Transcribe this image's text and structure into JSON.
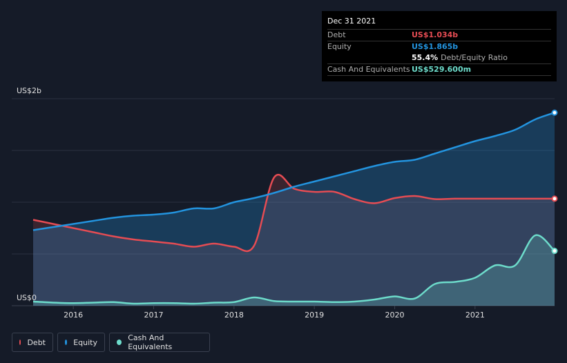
{
  "tooltip": {
    "date": "Dec 31 2021",
    "debt_label": "Debt",
    "debt_value": "US$1.034b",
    "equity_label": "Equity",
    "equity_value": "US$1.865b",
    "ratio_value": "55.4%",
    "ratio_label": "Debt/Equity Ratio",
    "cash_label": "Cash And Equivalents",
    "cash_value": "US$529.600m"
  },
  "legend": {
    "debt": "Debt",
    "equity": "Equity",
    "cash": "Cash And Equivalents"
  },
  "colors": {
    "background": "#151b28",
    "debt": "#e64c53",
    "equity": "#2394df",
    "cash": "#6ddccb"
  },
  "chart_data": {
    "type": "area",
    "y_axis_labels": [
      "US$2b",
      "US$0"
    ],
    "ylim": [
      0,
      2.0
    ],
    "xlim": [
      2015.5,
      2021.99
    ],
    "x_ticks": [
      2016,
      2017,
      2018,
      2019,
      2020,
      2021
    ],
    "x_tick_labels": [
      "2016",
      "2017",
      "2018",
      "2019",
      "2020",
      "2021"
    ],
    "unit": "US$b",
    "series": [
      {
        "name": "Debt",
        "x": [
          2015.5,
          2015.75,
          2016.0,
          2016.25,
          2016.5,
          2016.75,
          2017.0,
          2017.25,
          2017.5,
          2017.75,
          2018.0,
          2018.25,
          2018.5,
          2018.75,
          2019.0,
          2019.25,
          2019.5,
          2019.75,
          2020.0,
          2020.25,
          2020.5,
          2020.75,
          2021.0,
          2021.25,
          2021.5,
          2021.75,
          2021.99
        ],
        "values": [
          0.83,
          0.79,
          0.75,
          0.71,
          0.67,
          0.64,
          0.62,
          0.6,
          0.57,
          0.6,
          0.57,
          0.58,
          1.24,
          1.13,
          1.1,
          1.1,
          1.03,
          0.99,
          1.04,
          1.06,
          1.03,
          1.034,
          1.034,
          1.034,
          1.034,
          1.034,
          1.034
        ]
      },
      {
        "name": "Equity",
        "x": [
          2015.5,
          2015.75,
          2016.0,
          2016.25,
          2016.5,
          2016.75,
          2017.0,
          2017.25,
          2017.5,
          2017.75,
          2018.0,
          2018.25,
          2018.5,
          2018.75,
          2019.0,
          2019.25,
          2019.5,
          2019.75,
          2020.0,
          2020.25,
          2020.5,
          2020.75,
          2021.0,
          2021.25,
          2021.5,
          2021.75,
          2021.99
        ],
        "values": [
          0.73,
          0.76,
          0.79,
          0.82,
          0.85,
          0.87,
          0.88,
          0.9,
          0.94,
          0.94,
          1.0,
          1.04,
          1.09,
          1.15,
          1.2,
          1.25,
          1.3,
          1.35,
          1.39,
          1.41,
          1.47,
          1.53,
          1.59,
          1.64,
          1.7,
          1.8,
          1.865
        ]
      },
      {
        "name": "Cash And Equivalents",
        "x": [
          2015.5,
          2015.75,
          2016.0,
          2016.25,
          2016.5,
          2016.75,
          2017.0,
          2017.25,
          2017.5,
          2017.75,
          2018.0,
          2018.25,
          2018.5,
          2018.75,
          2019.0,
          2019.25,
          2019.5,
          2019.75,
          2020.0,
          2020.25,
          2020.5,
          2020.75,
          2021.0,
          2021.25,
          2021.5,
          2021.75,
          2021.99
        ],
        "values": [
          0.04,
          0.03,
          0.025,
          0.03,
          0.035,
          0.02,
          0.025,
          0.025,
          0.02,
          0.03,
          0.035,
          0.08,
          0.045,
          0.04,
          0.04,
          0.035,
          0.04,
          0.06,
          0.09,
          0.07,
          0.21,
          0.23,
          0.27,
          0.39,
          0.39,
          0.68,
          0.5296
        ]
      }
    ]
  }
}
